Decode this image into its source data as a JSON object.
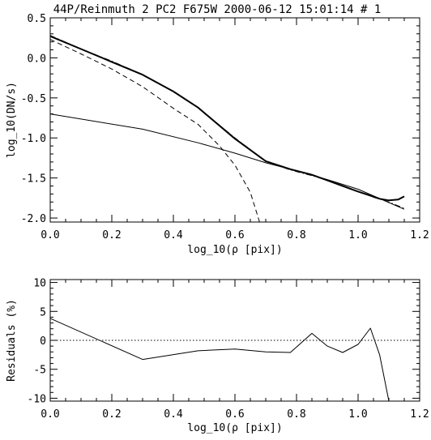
{
  "chart_data": [
    {
      "type": "line",
      "title": "44P/Reinmuth 2 PC2 F675W 2000-06-12 15:01:14 # 1",
      "xlabel": "log_10(ρ [pix])",
      "ylabel": "log_10(DN/s)",
      "xlim": [
        0.0,
        1.2
      ],
      "ylim": [
        -2.05,
        0.5
      ],
      "xticks": [
        "0.0",
        "0.2",
        "0.4",
        "0.6",
        "0.8",
        "1.0",
        "1.2"
      ],
      "yticks": [
        "0.5",
        "0.0",
        "-0.5",
        "-1.0",
        "-1.5",
        "-2.0"
      ],
      "ytick_values": [
        0.5,
        0.0,
        -0.5,
        -1.0,
        -1.5,
        -2.0
      ],
      "grid": false,
      "series": [
        {
          "style": "thick-solid",
          "x": [
            0.0,
            0.1,
            0.2,
            0.3,
            0.4,
            0.48,
            0.6,
            0.7,
            0.78,
            0.85,
            0.9,
            0.95,
            1.0,
            1.04,
            1.07,
            1.1,
            1.13,
            1.15
          ],
          "y": [
            0.27,
            0.11,
            -0.05,
            -0.21,
            -0.42,
            -0.62,
            -1.01,
            -1.29,
            -1.39,
            -1.46,
            -1.53,
            -1.6,
            -1.67,
            -1.72,
            -1.76,
            -1.78,
            -1.77,
            -1.73
          ]
        },
        {
          "style": "dash-dot",
          "x": [
            0.0,
            0.1,
            0.2,
            0.3,
            0.4,
            0.48,
            0.6,
            0.7,
            0.78,
            0.85,
            0.9,
            0.95,
            1.0,
            1.05,
            1.1,
            1.15
          ],
          "y": [
            0.28,
            0.11,
            -0.04,
            -0.21,
            -0.42,
            -0.62,
            -1.0,
            -1.29,
            -1.4,
            -1.47,
            -1.53,
            -1.6,
            -1.67,
            -1.74,
            -1.8,
            -1.88
          ]
        },
        {
          "style": "dashed",
          "x": [
            0.0,
            0.1,
            0.2,
            0.3,
            0.4,
            0.48,
            0.55,
            0.6,
            0.65,
            0.68
          ],
          "y": [
            0.23,
            0.05,
            -0.14,
            -0.36,
            -0.63,
            -0.83,
            -1.1,
            -1.34,
            -1.68,
            -2.05
          ]
        },
        {
          "style": "thin-solid",
          "x": [
            0.0,
            0.3,
            0.48,
            0.6,
            0.7,
            0.8,
            0.9,
            1.0,
            1.15
          ],
          "y": [
            -0.7,
            -0.89,
            -1.06,
            -1.19,
            -1.31,
            -1.41,
            -1.52,
            -1.64,
            -1.89
          ]
        }
      ]
    },
    {
      "type": "line",
      "title": "",
      "xlabel": "log_10(ρ [pix])",
      "ylabel": "Residuals (%)",
      "xlim": [
        0.0,
        1.2
      ],
      "ylim": [
        -10.5,
        10.5
      ],
      "xticks": [
        "0.0",
        "0.2",
        "0.4",
        "0.6",
        "0.8",
        "1.0",
        "1.2"
      ],
      "yticks": [
        "10",
        "5",
        "0",
        "-5",
        "-10"
      ],
      "ytick_values": [
        10,
        5,
        0,
        -5,
        -10
      ],
      "grid": false,
      "reference_line": {
        "y": 0,
        "style": "dotted"
      },
      "series": [
        {
          "style": "thin-solid",
          "x": [
            0.0,
            0.3,
            0.48,
            0.6,
            0.7,
            0.78,
            0.85,
            0.9,
            0.95,
            1.0,
            1.04,
            1.07,
            1.1,
            1.12
          ],
          "y": [
            3.8,
            -3.3,
            -1.8,
            -1.5,
            -2.0,
            -2.1,
            1.2,
            -1.0,
            -2.1,
            -0.7,
            2.1,
            -2.5,
            -10.5,
            -10.5
          ]
        }
      ]
    }
  ]
}
